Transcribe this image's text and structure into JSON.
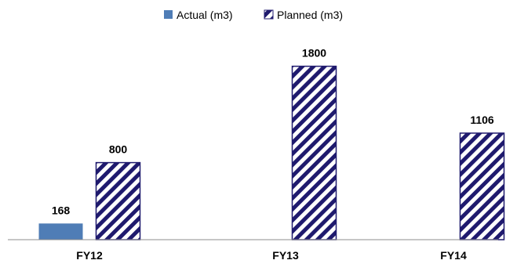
{
  "chart_data": {
    "type": "bar",
    "categories": [
      "FY12",
      "FY13",
      "FY14"
    ],
    "series": [
      {
        "name": "Actual (m3)",
        "values": [
          168,
          null,
          null
        ],
        "color": "#4f7db6",
        "fill": "solid"
      },
      {
        "name": "Planned (m3)",
        "values": [
          800,
          1800,
          1106
        ],
        "color": "#1f1a6e",
        "fill": "diagonal-hatch"
      }
    ],
    "data_labels": {
      "actual": [
        "168",
        "",
        ""
      ],
      "planned": [
        "800",
        "1800",
        "1106"
      ]
    },
    "ylim": [
      0,
      2000
    ],
    "legend_position": "top",
    "grid": false
  }
}
